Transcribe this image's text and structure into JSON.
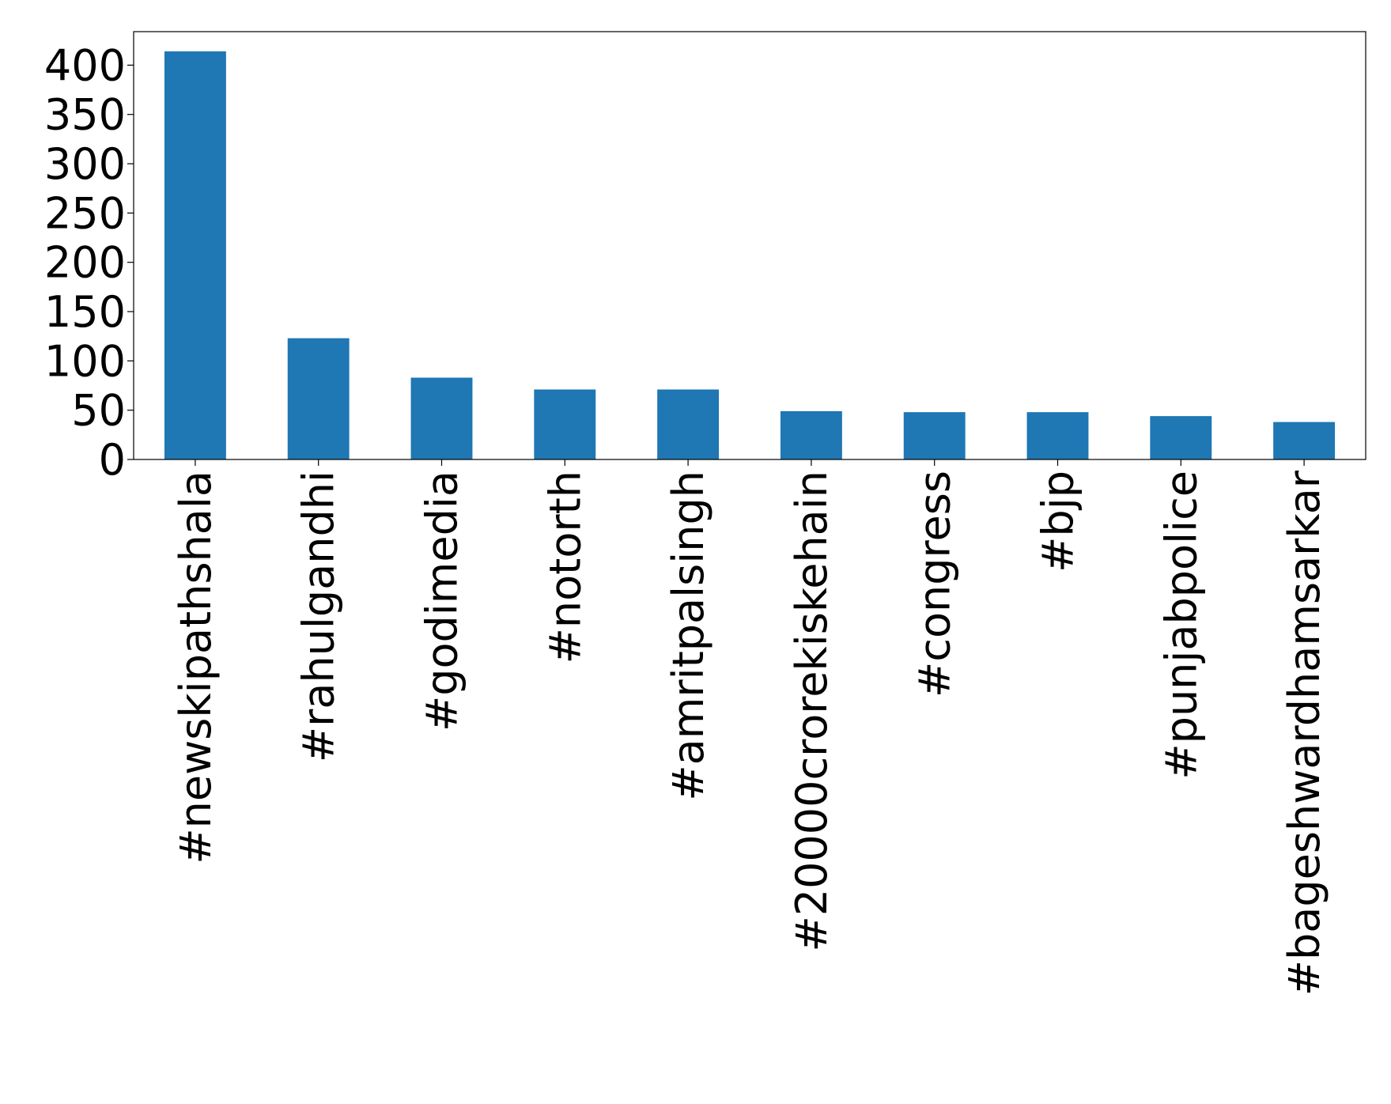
{
  "chart_data": {
    "type": "bar",
    "categories": [
      "#newskipathshala",
      "#rahulgandhi",
      "#godimedia",
      "#notorth",
      "#amritpalsingh",
      "#20000crorekiskehain",
      "#congress",
      "#bjp",
      "#punjabpolice",
      "#bageshwardhamsarkar"
    ],
    "values": [
      414,
      123,
      83,
      71,
      71,
      49,
      48,
      48,
      44,
      38
    ],
    "color": "#1f77b4",
    "ylim": [
      0,
      434
    ],
    "yticks": [
      0,
      50,
      100,
      150,
      200,
      250,
      300,
      350,
      400
    ],
    "grid": false
  }
}
